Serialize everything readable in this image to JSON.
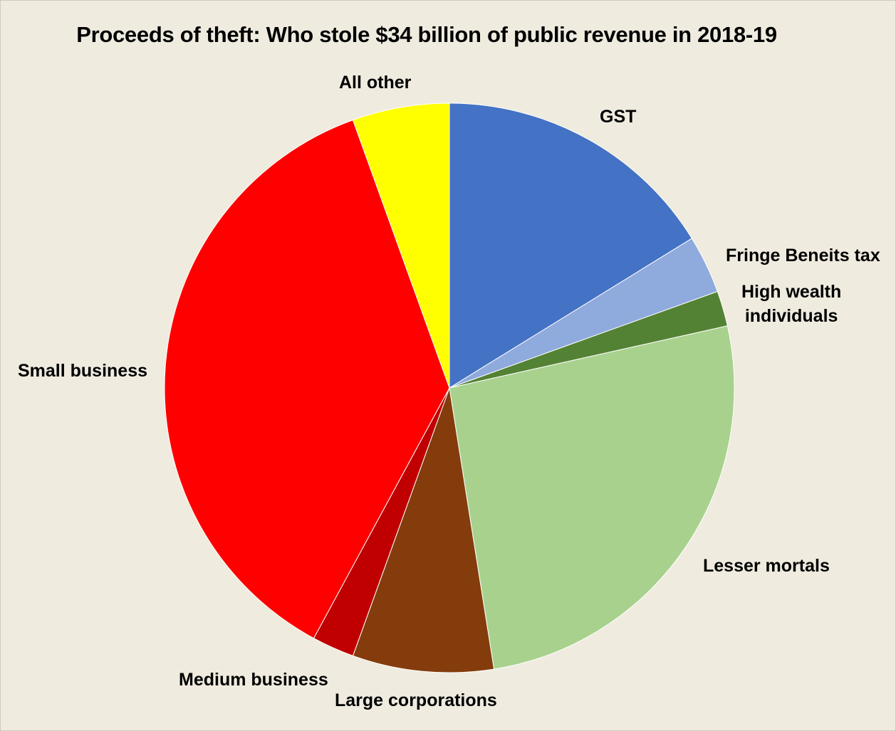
{
  "chart_data": {
    "type": "pie",
    "title": "Proceeds of theft: Who stole $34 billion of public revenue in 2018-19",
    "slices": [
      {
        "label": "GST",
        "value": 16.2,
        "color": "#4472c4"
      },
      {
        "label": "Fringe Beneits tax",
        "value": 3.3,
        "color": "#8faadc"
      },
      {
        "label": "High wealth\nindividuals",
        "value": 2.0,
        "color": "#548235"
      },
      {
        "label": "Lesser mortals",
        "value": 26.0,
        "color": "#a9d18e"
      },
      {
        "label": "Large corporations",
        "value": 8.0,
        "color": "#843c0c"
      },
      {
        "label": "Medium business",
        "value": 2.4,
        "color": "#c00000"
      },
      {
        "label": "Small business",
        "value": 36.6,
        "color": "#ff0000"
      },
      {
        "label": "All other",
        "value": 5.5,
        "color": "#ffff00"
      }
    ]
  }
}
